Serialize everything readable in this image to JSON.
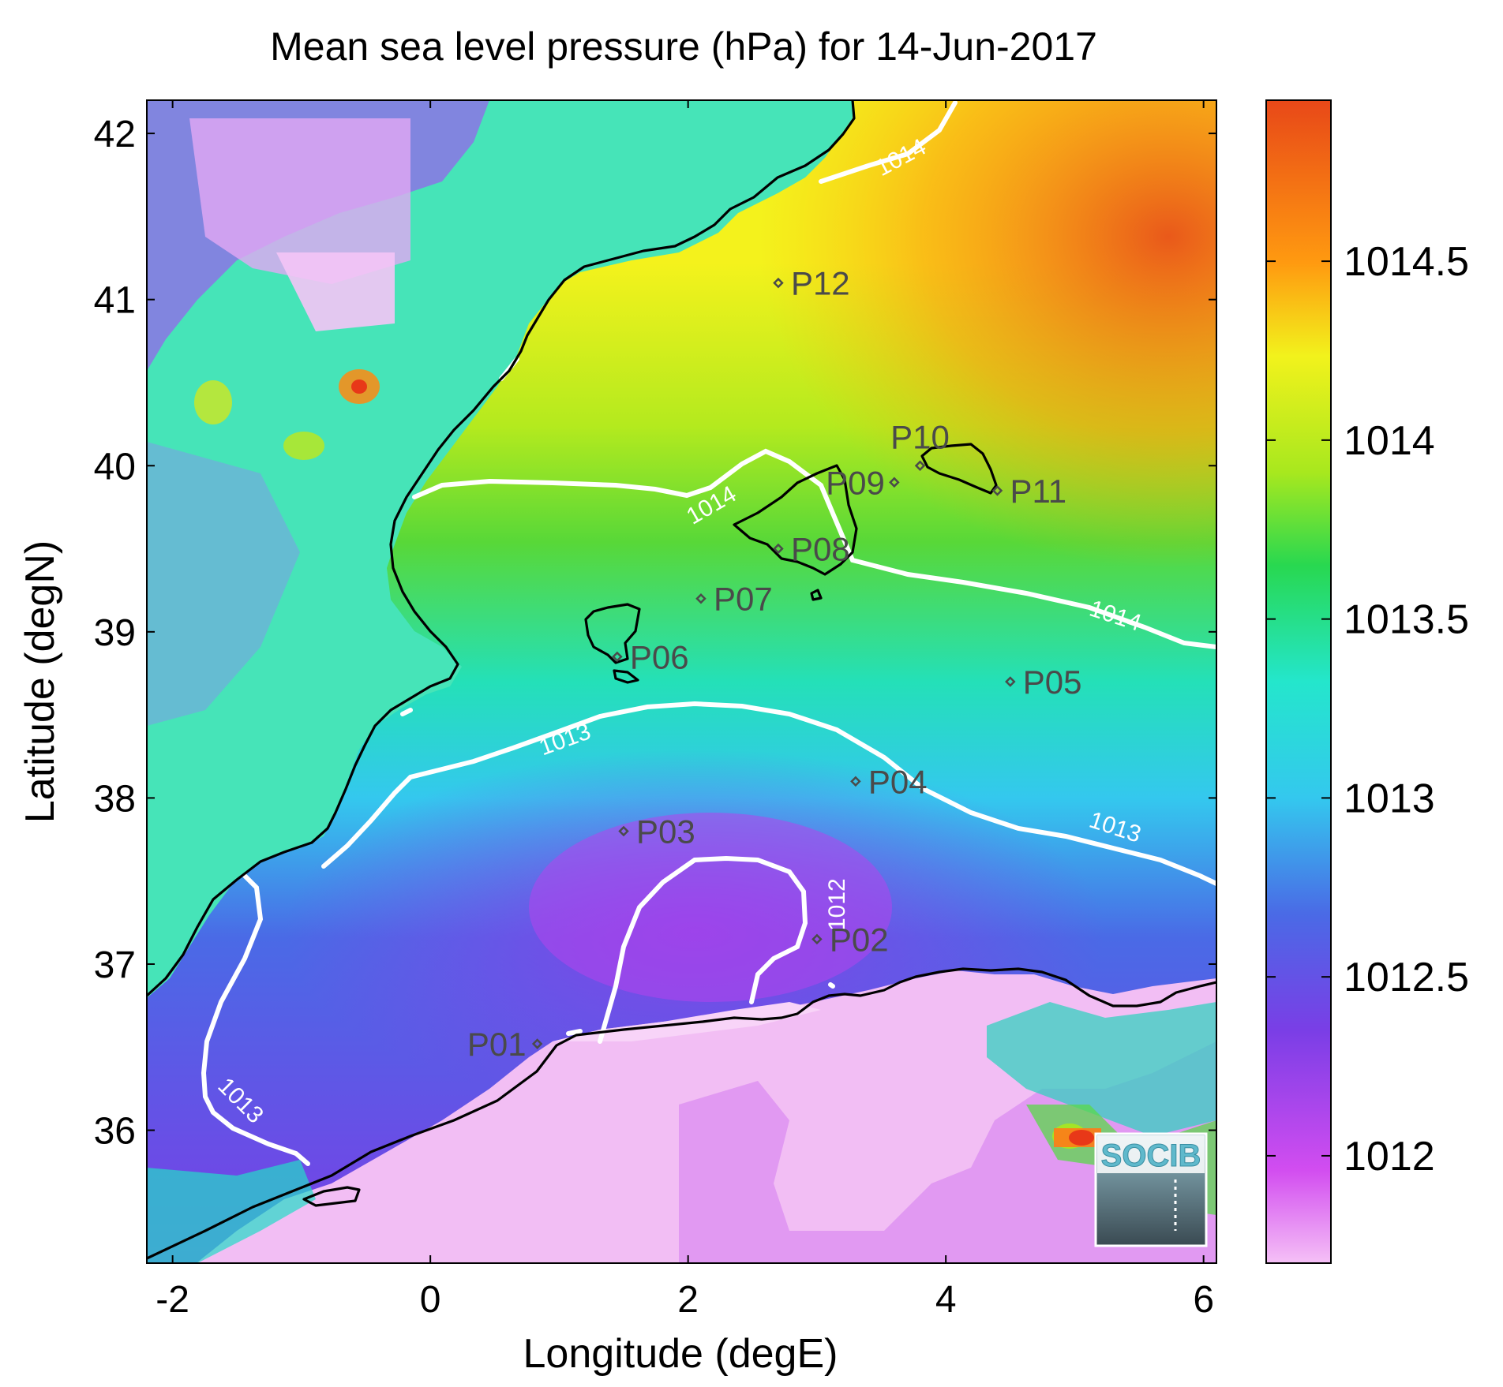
{
  "title": "Mean sea level pressure (hPa) for 14-Jun-2017",
  "xlabel": "Longitude (degE)",
  "ylabel": "Latitude (degN)",
  "x_ticks": [
    "-2",
    "0",
    "2",
    "4",
    "6"
  ],
  "y_ticks": [
    "36",
    "37",
    "38",
    "39",
    "40",
    "41",
    "42"
  ],
  "colorbar_ticks": [
    "1012",
    "1012.5",
    "1013",
    "1013.5",
    "1014",
    "1014.5"
  ],
  "contour_labels": [
    "1014",
    "1014",
    "1014",
    "1013",
    "1013",
    "1013",
    "1012"
  ],
  "logo": "SOCIB",
  "stations": [
    {
      "id": "P01",
      "lon": 0.83,
      "lat": 36.52
    },
    {
      "id": "P02",
      "lon": 3.0,
      "lat": 37.15
    },
    {
      "id": "P03",
      "lon": 1.5,
      "lat": 37.8
    },
    {
      "id": "P04",
      "lon": 3.3,
      "lat": 38.1
    },
    {
      "id": "P05",
      "lon": 4.5,
      "lat": 38.7
    },
    {
      "id": "P06",
      "lon": 1.45,
      "lat": 38.85
    },
    {
      "id": "P07",
      "lon": 2.1,
      "lat": 39.2
    },
    {
      "id": "P08",
      "lon": 2.7,
      "lat": 39.5
    },
    {
      "id": "P09",
      "lon": 3.6,
      "lat": 39.9
    },
    {
      "id": "P10",
      "lon": 3.8,
      "lat": 40.0
    },
    {
      "id": "P11",
      "lon": 4.4,
      "lat": 39.85
    },
    {
      "id": "P12",
      "lon": 2.7,
      "lat": 41.1
    }
  ],
  "chart_data": {
    "type": "heatmap",
    "variable": "Mean sea level pressure (hPa)",
    "date": "14-Jun-2017",
    "xlim": [
      -2.2,
      6.1
    ],
    "ylim": [
      35.2,
      42.2
    ],
    "color_range": [
      1011.7,
      1014.95
    ],
    "colormap": [
      "#f5c0f6",
      "#d24df0",
      "#7a3ee6",
      "#4a6ae6",
      "#34c8ee",
      "#24e6cc",
      "#28d850",
      "#a8e81e",
      "#f2f21c",
      "#ff9a10",
      "#e84818"
    ],
    "contour_levels": [
      1012,
      1013,
      1014
    ],
    "contour_color": "#ffffff",
    "coastline_color": "#000000"
  }
}
